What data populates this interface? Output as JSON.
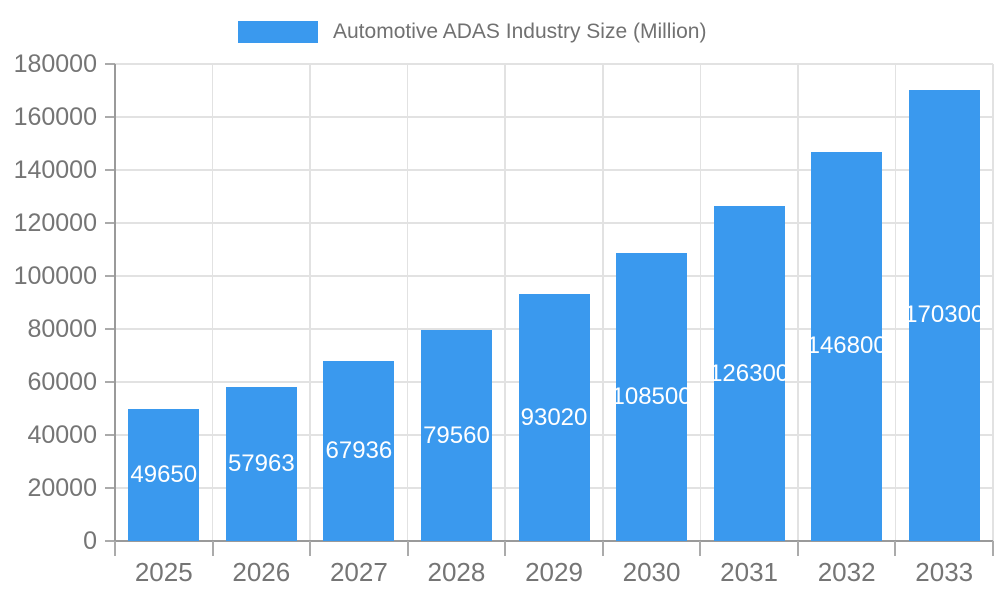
{
  "chart_data": {
    "type": "bar",
    "title": "Automotive ADAS Industry Size (Million)",
    "legend_position": "top",
    "categories": [
      "2025",
      "2026",
      "2027",
      "2028",
      "2029",
      "2030",
      "2031",
      "2032",
      "2033"
    ],
    "series": [
      {
        "name": "Automotive ADAS Industry Size (Million)",
        "values": [
          49650,
          57963,
          67936,
          79560,
          93020,
          108500,
          126300,
          146800,
          170300
        ]
      }
    ],
    "xlabel": "",
    "ylabel": "",
    "ylim": [
      0,
      180000
    ],
    "ytick_step": 20000,
    "yticks": [
      "0",
      "20000",
      "40000",
      "60000",
      "80000",
      "100000",
      "120000",
      "140000",
      "160000",
      "180000"
    ],
    "grid": true,
    "value_labels_inside_bars": true,
    "colors": {
      "bar": "#3a99ee",
      "gridline": "#e2e2e2",
      "axis": "#9a9a9a",
      "tick": "#ababab",
      "axis_label": "#757575",
      "legend_text": "#717171",
      "value_label": "#ffffff"
    }
  }
}
